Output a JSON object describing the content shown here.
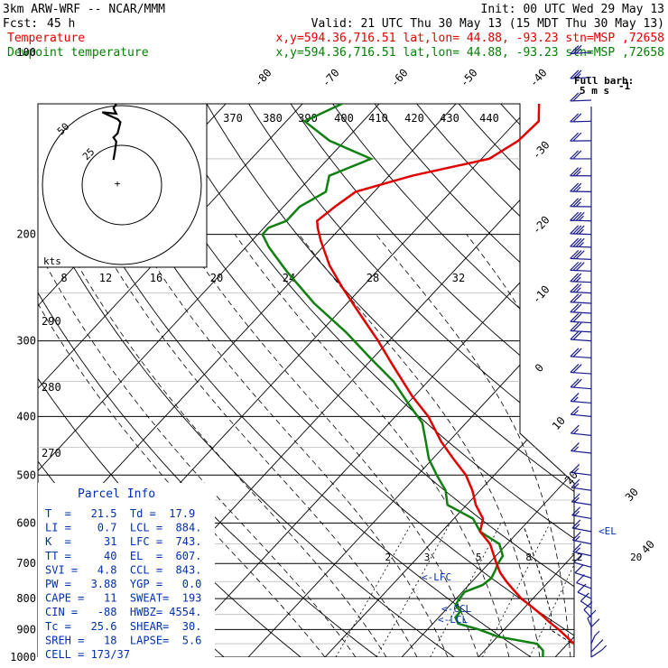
{
  "header": {
    "model": "3km ARW-WRF -- NCAR/MMM",
    "init": "Init: 00 UTC Wed 29 May 13",
    "fcst_label": "Fcst:",
    "fcst_value": "45 h",
    "valid": "Valid: 21 UTC Thu 30 May 13 (15 MDT Thu 30 May 13)",
    "temp_label": "Temperature",
    "temp_loc": "x,y=594.36,716.51   lat,lon= 44.88, -93.23  stn=MSP ,72658",
    "dew_label": "Dewpoint temperature",
    "dew_loc": "x,y=594.36,716.51   lat,lon= 44.88, -93.23  stn=MSP ,72658"
  },
  "colors": {
    "temperature": "#e00000",
    "dewpoint": "#108010",
    "barb": "#1a1a8c",
    "parcel_text": "#0030b0",
    "grid": "#000000"
  },
  "hodograph": {
    "units_label": "kts",
    "ring_labels": [
      "50",
      "25"
    ],
    "speed_ticks": [
      "8",
      "12",
      "16",
      "20",
      "24",
      "28",
      "32"
    ],
    "trace_kts": [
      [
        -4,
        58
      ],
      [
        -6,
        55
      ],
      [
        -4,
        51
      ],
      [
        -14,
        52
      ],
      [
        -3,
        47
      ],
      [
        -1,
        45
      ],
      [
        -2,
        41
      ],
      [
        -3,
        37
      ],
      [
        -6,
        34
      ],
      [
        -4,
        31
      ],
      [
        -5,
        24
      ],
      [
        -6,
        18
      ]
    ]
  },
  "barb_legend": {
    "title": "Full barb:",
    "value": "5 m s",
    "exponent": "-1"
  },
  "parcel_info": {
    "title": "Parcel Info",
    "rows": [
      "T  =   21.5  Td =  17.9",
      "LI =    0.7  LCL =  884.",
      "K  =     31  LFC =  743.",
      "TT =     40  EL  =  607.",
      "SVI =   4.8  CCL =  843.",
      "PW =   3.88  YGP =   0.0",
      "CAPE =   11  SWEAT=  193",
      "CIN =   -88  HWBZ= 4554.",
      "Tc =   25.6  SHEAR=  30.",
      "SREH =   18  LAPSE=  5.6",
      "CELL = 173/37"
    ]
  },
  "level_markers": {
    "el": "EL",
    "lfc": "LFC",
    "ccl": "CCL",
    "lcl": "LCL"
  },
  "chart_data": {
    "type": "line",
    "diagram": "skew-T log-P",
    "yaxis_pressure_hpa": [
      100,
      200,
      300,
      400,
      500,
      600,
      700,
      800,
      900,
      1000
    ],
    "ylim": [
      1000,
      100
    ],
    "isotherm_labels_c": [
      -80,
      -70,
      -60,
      -50,
      -40,
      -30,
      -20,
      -10,
      0,
      10,
      20,
      30,
      40
    ],
    "theta_labels_k": [
      370,
      380,
      390,
      400,
      410,
      420,
      430,
      440
    ],
    "theta_e_labels_k": [
      290,
      280,
      270
    ],
    "mixing_ratio_labels": [
      2,
      3,
      5,
      8,
      12,
      20
    ],
    "series": [
      {
        "name": "Temperature",
        "pressure": [
          1000,
          960,
          925,
          900,
          875,
          850,
          825,
          800,
          775,
          750,
          725,
          700,
          650,
          620,
          590,
          560,
          530,
          500,
          470,
          440,
          400,
          370,
          330,
          300,
          270,
          245,
          225,
          205,
          195,
          190,
          180,
          170,
          160,
          150,
          140,
          130,
          120,
          110,
          100
        ],
        "values": [
          24.8,
          21.5,
          19.0,
          17.1,
          15.0,
          13.0,
          10.8,
          8.5,
          6.5,
          4.5,
          2.6,
          1.0,
          -2.2,
          -5.0,
          -6.2,
          -8.8,
          -11.0,
          -13.7,
          -17.3,
          -21.0,
          -25.7,
          -30.3,
          -36.4,
          -41.4,
          -47.2,
          -52.5,
          -56.9,
          -61.0,
          -63.0,
          -63.9,
          -63.3,
          -62.4,
          -57.0,
          -49.0,
          -47.4,
          -47.1,
          -49.6,
          -50.7,
          -51.6
        ]
      },
      {
        "name": "Dewpoint temperature",
        "pressure": [
          1000,
          975,
          950,
          925,
          900,
          880,
          860,
          840,
          820,
          800,
          780,
          760,
          740,
          720,
          700,
          680,
          650,
          620,
          590,
          560,
          530,
          500,
          470,
          440,
          410,
          380,
          350,
          320,
          290,
          260,
          230,
          210,
          200,
          195,
          190,
          180,
          170,
          160,
          150,
          140,
          130,
          120,
          110,
          100
        ],
        "values": [
          18.4,
          17.6,
          16.0,
          10.1,
          6.7,
          3.3,
          2.2,
          2.1,
          0.7,
          0.4,
          0.3,
          1.8,
          2.1,
          1.7,
          1.2,
          0.9,
          -1.0,
          -5.0,
          -7.5,
          -12.5,
          -14.5,
          -17.5,
          -20.5,
          -23.0,
          -25.7,
          -30.0,
          -34.5,
          -40.4,
          -46.7,
          -54.3,
          -61.8,
          -67.0,
          -69.4,
          -69.4,
          -67.9,
          -67.9,
          -66.3,
          -67.8,
          -64.4,
          -72.0,
          -77.6,
          -74.3,
          -75.7,
          -75.3
        ]
      }
    ],
    "parcel_path": {
      "pressure": [
        1000,
        960,
        900,
        884,
        850,
        800,
        743,
        700,
        650,
        607
      ],
      "values": [
        24.8,
        21.5,
        16.0,
        15.5,
        14.3,
        11.8,
        8.8,
        6.2,
        3.0,
        0.0
      ]
    },
    "wind_barbs": {
      "pressure": [
        100,
        110,
        120,
        130,
        140,
        150,
        160,
        170,
        180,
        190,
        200,
        210,
        220,
        230,
        240,
        250,
        260,
        270,
        280,
        290,
        300,
        320,
        340,
        360,
        380,
        400,
        430,
        460,
        500,
        530,
        560,
        590,
        620,
        650,
        680,
        710,
        740,
        770,
        800,
        830,
        860,
        890,
        920,
        950,
        980,
        1000
      ],
      "speed_ms": [
        14,
        14,
        12,
        12,
        12,
        12,
        14,
        14,
        14,
        18,
        18,
        18,
        16,
        16,
        14,
        14,
        12,
        12,
        12,
        12,
        12,
        10,
        10,
        10,
        8,
        8,
        8,
        8,
        8,
        8,
        8,
        8,
        8,
        8,
        8,
        6,
        6,
        6,
        6,
        5,
        5,
        5,
        5,
        4,
        4,
        3
      ],
      "direction_deg": [
        260,
        262,
        264,
        266,
        268,
        270,
        270,
        272,
        272,
        274,
        275,
        275,
        276,
        276,
        276,
        277,
        278,
        278,
        278,
        278,
        280,
        280,
        280,
        282,
        282,
        284,
        285,
        286,
        288,
        290,
        292,
        294,
        296,
        298,
        300,
        305,
        310,
        315,
        320,
        330,
        340,
        350,
        360,
        10,
        20,
        30
      ]
    }
  }
}
